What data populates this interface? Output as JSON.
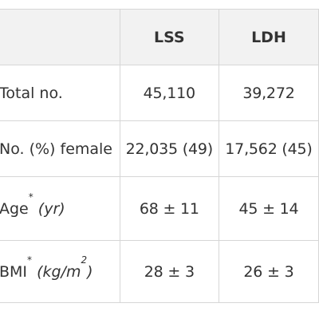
{
  "table": {
    "headers": [
      "",
      "LSS",
      "LDH"
    ],
    "rows": [
      {
        "label": "Total no.",
        "unit": "",
        "sup": "",
        "values": [
          "45,110",
          "39,272"
        ]
      },
      {
        "label": "No. (%) female",
        "unit": "",
        "sup": "",
        "values": [
          "22,035 (49)",
          "17,562 (45)"
        ]
      },
      {
        "label": "Age",
        "sup": "*",
        "unit": "(yr)",
        "values": [
          "68 ± 11",
          "45 ± 14"
        ]
      },
      {
        "label": "BMI",
        "sup": "*",
        "unit_prefix": "(kg/m",
        "unit_sup": "2",
        "unit_suffix": ")",
        "values": [
          "28 ± 3",
          "26 ± 3"
        ]
      }
    ]
  }
}
